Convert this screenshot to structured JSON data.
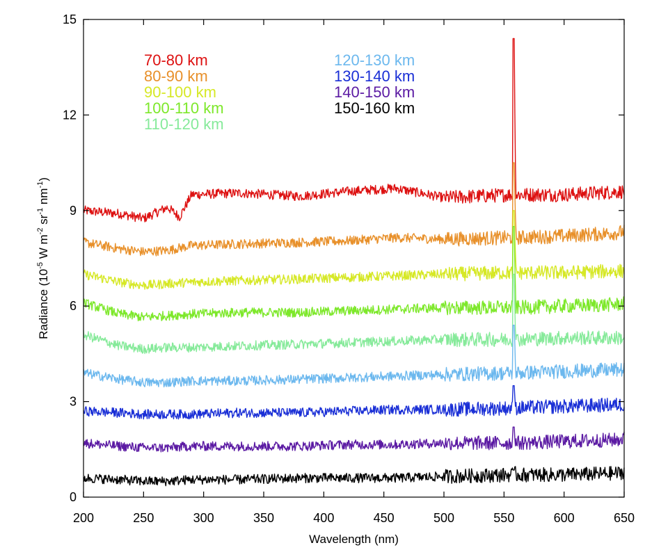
{
  "chart_data": {
    "type": "line",
    "title": "",
    "xlabel": "Wavelength (nm)",
    "ylabel_parts": [
      "Radiance (10",
      "-5",
      " W m",
      "-2",
      " sr",
      "-1",
      " nm",
      "-1",
      ")"
    ],
    "xlim": [
      200,
      650
    ],
    "ylim": [
      0,
      15
    ],
    "xticks": [
      200,
      250,
      300,
      350,
      400,
      450,
      500,
      550,
      600,
      650
    ],
    "yticks": [
      0,
      3,
      6,
      9,
      12,
      15
    ],
    "x_tick_labels": [
      "200",
      "250",
      "300",
      "350",
      "400",
      "450",
      "500",
      "550",
      "600",
      "650"
    ],
    "y_tick_labels": [
      "0",
      "3",
      "6",
      "9",
      "12",
      "15"
    ],
    "grid": false,
    "legend_position": "top-left",
    "series": [
      {
        "name": "70-80 km",
        "color": "#dd1111",
        "x": [
          200,
          230,
          250,
          270,
          280,
          290,
          330,
          380,
          420,
          460,
          500,
          557,
          558,
          560,
          600,
          650
        ],
        "values": [
          9.0,
          8.9,
          8.75,
          9.1,
          8.8,
          9.5,
          9.55,
          9.45,
          9.6,
          9.7,
          9.4,
          9.5,
          14.4,
          9.5,
          9.5,
          9.6
        ]
      },
      {
        "name": "80-90 km",
        "color": "#e8902a",
        "x": [
          200,
          230,
          250,
          270,
          290,
          330,
          380,
          420,
          460,
          500,
          557,
          558,
          560,
          600,
          645,
          650
        ],
        "values": [
          8.0,
          7.8,
          7.7,
          7.75,
          7.9,
          7.95,
          8.0,
          8.05,
          8.15,
          8.1,
          8.15,
          10.5,
          8.15,
          8.2,
          8.3,
          8.35
        ]
      },
      {
        "name": "90-100 km",
        "color": "#d6e826",
        "x": [
          200,
          230,
          250,
          270,
          290,
          330,
          380,
          420,
          460,
          500,
          557,
          558,
          560,
          600,
          645,
          650
        ],
        "values": [
          7.0,
          6.75,
          6.65,
          6.7,
          6.75,
          6.8,
          6.85,
          6.9,
          6.95,
          7.0,
          7.05,
          9.0,
          7.05,
          7.05,
          7.1,
          7.1
        ]
      },
      {
        "name": "100-110 km",
        "color": "#7de82a",
        "x": [
          200,
          230,
          250,
          270,
          290,
          330,
          380,
          420,
          460,
          500,
          557,
          558,
          560,
          600,
          645,
          650
        ],
        "values": [
          6.1,
          5.75,
          5.65,
          5.7,
          5.75,
          5.8,
          5.8,
          5.85,
          5.9,
          5.95,
          5.95,
          8.5,
          5.95,
          6.0,
          6.05,
          6.1
        ]
      },
      {
        "name": "110-120 km",
        "color": "#86ea9a",
        "x": [
          200,
          230,
          250,
          270,
          290,
          330,
          380,
          420,
          460,
          500,
          557,
          558,
          560,
          600,
          645,
          650
        ],
        "values": [
          5.1,
          4.75,
          4.65,
          4.7,
          4.7,
          4.75,
          4.8,
          4.85,
          4.9,
          4.95,
          4.95,
          7.0,
          4.95,
          5.0,
          5.0,
          5.0
        ]
      },
      {
        "name": "120-130 km",
        "color": "#6cb8ee",
        "x": [
          200,
          230,
          250,
          270,
          290,
          330,
          380,
          420,
          460,
          500,
          557,
          558,
          560,
          600,
          645,
          650
        ],
        "values": [
          3.9,
          3.7,
          3.6,
          3.6,
          3.65,
          3.65,
          3.7,
          3.75,
          3.8,
          3.85,
          3.9,
          5.4,
          3.9,
          3.95,
          4.0,
          4.0
        ]
      },
      {
        "name": "130-140 km",
        "color": "#1a2fd6",
        "x": [
          200,
          230,
          250,
          270,
          290,
          330,
          380,
          420,
          460,
          500,
          557,
          558,
          560,
          600,
          645,
          650
        ],
        "values": [
          2.7,
          2.65,
          2.6,
          2.6,
          2.6,
          2.65,
          2.65,
          2.7,
          2.75,
          2.75,
          2.8,
          3.5,
          2.8,
          2.85,
          2.9,
          2.9
        ]
      },
      {
        "name": "140-150 km",
        "color": "#5b1aa3",
        "x": [
          200,
          230,
          250,
          270,
          290,
          330,
          380,
          420,
          460,
          500,
          557,
          558,
          560,
          600,
          645,
          650
        ],
        "values": [
          1.7,
          1.6,
          1.55,
          1.55,
          1.6,
          1.6,
          1.6,
          1.65,
          1.65,
          1.7,
          1.7,
          2.2,
          1.7,
          1.75,
          1.8,
          1.85
        ]
      },
      {
        "name": "150-160 km",
        "color": "#000000",
        "x": [
          200,
          230,
          250,
          270,
          290,
          330,
          380,
          420,
          460,
          500,
          557,
          558,
          560,
          600,
          645,
          650
        ],
        "values": [
          0.6,
          0.55,
          0.5,
          0.5,
          0.55,
          0.55,
          0.6,
          0.6,
          0.6,
          0.65,
          0.7,
          0.85,
          0.7,
          0.7,
          0.75,
          0.8
        ]
      }
    ]
  }
}
